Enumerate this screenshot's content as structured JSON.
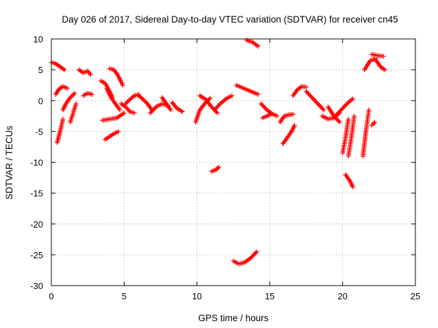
{
  "chart_data": {
    "type": "scatter",
    "title": "Day 026 of 2017, Sidereal Day-to-day VTEC variation (SDTVAR) for receiver cn45",
    "xlabel": "GPS time / hours",
    "ylabel": "SDTVAR / TECUs",
    "xlim": [
      0,
      25
    ],
    "ylim": [
      -30,
      10
    ],
    "xticks": [
      "0",
      "5",
      "10",
      "15",
      "20",
      "25"
    ],
    "yticks": [
      "10",
      "5",
      "0",
      "-5",
      "-10",
      "-15",
      "-20",
      "-25",
      "-30"
    ],
    "grid": true,
    "marker": "+",
    "color": "#ff0000",
    "segments": [
      {
        "x": [
          0.0,
          0.3,
          0.6,
          0.9
        ],
        "y": [
          6.2,
          6.0,
          5.5,
          5.0
        ]
      },
      {
        "x": [
          0.3,
          0.5,
          0.8,
          1.1
        ],
        "y": [
          1.0,
          1.8,
          2.3,
          2.0
        ]
      },
      {
        "x": [
          0.4,
          0.6,
          0.8
        ],
        "y": [
          -6.8,
          -5.0,
          -3.0
        ]
      },
      {
        "x": [
          0.8,
          1.0,
          1.3,
          1.6
        ],
        "y": [
          -1.5,
          -0.5,
          0.5,
          1.2
        ]
      },
      {
        "x": [
          1.3,
          1.5,
          1.7
        ],
        "y": [
          -3.5,
          -2.0,
          -0.5
        ]
      },
      {
        "x": [
          1.9,
          2.2,
          2.5,
          2.7
        ],
        "y": [
          5.0,
          4.5,
          4.8,
          4.2
        ]
      },
      {
        "x": [
          2.2,
          2.5,
          2.8
        ],
        "y": [
          0.8,
          1.2,
          1.0
        ]
      },
      {
        "x": [
          3.4,
          3.7,
          4.0,
          4.2
        ],
        "y": [
          3.2,
          2.8,
          1.5,
          0.5
        ]
      },
      {
        "x": [
          3.8,
          4.1,
          4.4,
          4.7
        ],
        "y": [
          2.0,
          0.5,
          -0.5,
          -1.5
        ]
      },
      {
        "x": [
          4.0,
          4.3,
          4.6,
          4.9
        ],
        "y": [
          5.2,
          5.0,
          4.0,
          2.5
        ]
      },
      {
        "x": [
          3.5,
          4.0,
          4.5,
          5.0
        ],
        "y": [
          -3.2,
          -3.0,
          -2.8,
          -2.0
        ]
      },
      {
        "x": [
          3.7,
          4.2,
          4.6
        ],
        "y": [
          -6.3,
          -5.5,
          -5.0
        ]
      },
      {
        "x": [
          4.8,
          5.1,
          5.4,
          5.7
        ],
        "y": [
          -0.5,
          -1.0,
          -1.8,
          -2.0
        ]
      },
      {
        "x": [
          5.1,
          5.4,
          5.7,
          6.0
        ],
        "y": [
          -0.5,
          0.2,
          0.8,
          1.0
        ]
      },
      {
        "x": [
          6.0,
          6.3,
          6.6,
          6.9
        ],
        "y": [
          0.8,
          0.2,
          -0.5,
          -1.5
        ]
      },
      {
        "x": [
          6.8,
          7.2,
          7.6,
          8.0
        ],
        "y": [
          -2.0,
          -1.0,
          -0.5,
          -0.8
        ]
      },
      {
        "x": [
          7.6,
          7.9,
          8.2
        ],
        "y": [
          0.5,
          -0.5,
          -1.5
        ]
      },
      {
        "x": [
          8.3,
          8.6,
          9.0
        ],
        "y": [
          -0.3,
          -1.2,
          -1.8
        ]
      },
      {
        "x": [
          9.9,
          10.2,
          10.6,
          10.9
        ],
        "y": [
          -3.5,
          -1.5,
          -0.3,
          0.4
        ]
      },
      {
        "x": [
          10.2,
          10.6,
          11.0,
          11.4
        ],
        "y": [
          0.8,
          0.2,
          -1.0,
          -2.0
        ]
      },
      {
        "x": [
          11.2,
          11.6,
          12.0,
          12.4
        ],
        "y": [
          -1.5,
          -0.5,
          0.3,
          0.8
        ]
      },
      {
        "x": [
          11.0,
          11.3,
          11.5
        ],
        "y": [
          -11.5,
          -11.2,
          -10.8
        ]
      },
      {
        "x": [
          12.5,
          12.9,
          13.3,
          13.7,
          14.1
        ],
        "y": [
          -26.0,
          -26.5,
          -26.2,
          -25.5,
          -24.5
        ]
      },
      {
        "x": [
          12.7,
          13.2,
          13.7,
          14.2
        ],
        "y": [
          2.5,
          2.0,
          1.5,
          1.0
        ]
      },
      {
        "x": [
          13.4,
          13.8,
          14.2
        ],
        "y": [
          9.8,
          9.5,
          8.8
        ]
      },
      {
        "x": [
          14.4,
          14.8,
          15.2,
          15.5
        ],
        "y": [
          -0.5,
          -1.5,
          -2.2,
          -2.5
        ]
      },
      {
        "x": [
          14.5,
          14.8,
          15.1
        ],
        "y": [
          -2.8,
          -2.5,
          -2.2
        ]
      },
      {
        "x": [
          15.7,
          16.0,
          16.3,
          16.6
        ],
        "y": [
          -3.5,
          -2.5,
          -2.3,
          -2.2
        ]
      },
      {
        "x": [
          15.9,
          16.2,
          16.5,
          16.7
        ],
        "y": [
          -7.0,
          -6.0,
          -5.0,
          -4.0
        ]
      },
      {
        "x": [
          16.6,
          16.9,
          17.2,
          17.5
        ],
        "y": [
          0.8,
          1.8,
          2.3,
          2.2
        ]
      },
      {
        "x": [
          17.5,
          17.9,
          18.3,
          18.7
        ],
        "y": [
          1.5,
          0.5,
          -0.5,
          -1.5
        ]
      },
      {
        "x": [
          18.6,
          19.0,
          19.4,
          19.8
        ],
        "y": [
          -2.5,
          -3.0,
          -2.8,
          -2.0
        ]
      },
      {
        "x": [
          19.0,
          19.4,
          19.8
        ],
        "y": [
          -1.0,
          -2.5,
          -3.5
        ]
      },
      {
        "x": [
          19.5,
          19.9,
          20.3,
          20.7
        ],
        "y": [
          -2.5,
          -1.5,
          -0.5,
          0.3
        ]
      },
      {
        "x": [
          20.0,
          20.2,
          20.4
        ],
        "y": [
          -8.5,
          -6.0,
          -3.0
        ]
      },
      {
        "x": [
          20.4,
          20.6,
          20.8
        ],
        "y": [
          -9.0,
          -6.0,
          -2.5
        ]
      },
      {
        "x": [
          20.2,
          20.5,
          20.7
        ],
        "y": [
          -12.0,
          -13.0,
          -14.0
        ]
      },
      {
        "x": [
          21.4,
          21.6,
          21.8
        ],
        "y": [
          -9.0,
          -5.0,
          -1.5
        ]
      },
      {
        "x": [
          22.0,
          22.1,
          22.2
        ],
        "y": [
          -4.0,
          -3.8,
          -3.5
        ]
      },
      {
        "x": [
          21.5,
          21.9,
          22.3
        ],
        "y": [
          5.0,
          6.5,
          6.8
        ]
      },
      {
        "x": [
          22.0,
          22.4,
          22.8
        ],
        "y": [
          7.5,
          7.3,
          7.2
        ]
      },
      {
        "x": [
          22.3,
          22.6,
          22.9
        ],
        "y": [
          6.5,
          5.5,
          5.0
        ]
      }
    ]
  }
}
